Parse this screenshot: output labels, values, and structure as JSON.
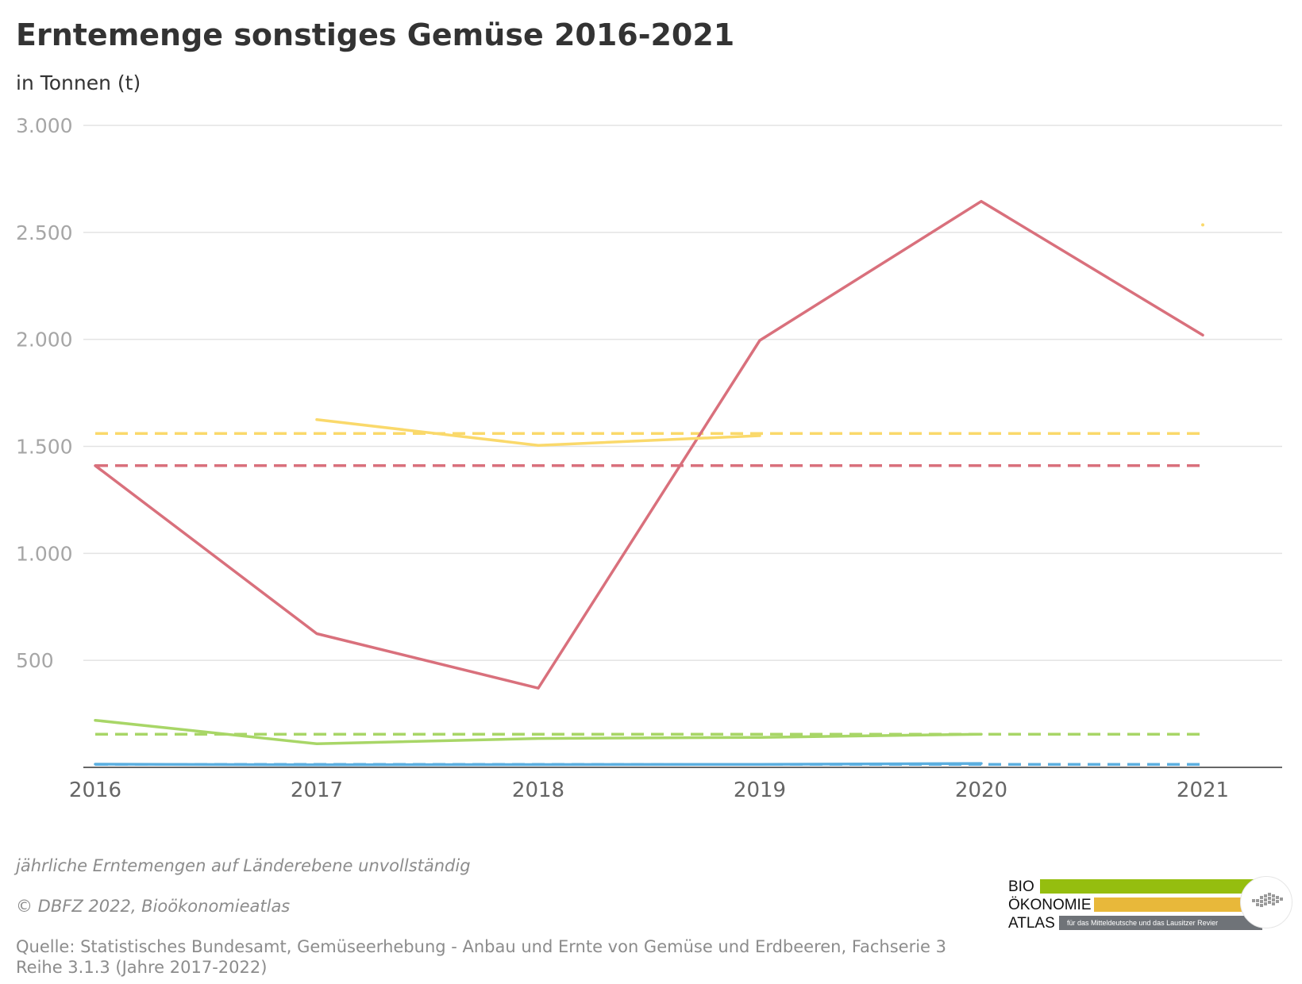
{
  "header": {
    "title": "Erntemenge sonstiges Gemüse 2016-2021",
    "subtitle": "in Tonnen (t)"
  },
  "chart_data": {
    "type": "line",
    "title": "Erntemenge sonstiges Gemüse 2016-2021",
    "subtitle": "in Tonnen (t)",
    "xlabel": "",
    "ylabel": "",
    "x": [
      "2016",
      "2017",
      "2018",
      "2019",
      "2020",
      "2021"
    ],
    "ylim": [
      0,
      3000
    ],
    "yticks": [
      500,
      1000,
      1500,
      2000,
      2500,
      3000
    ],
    "ytick_labels": [
      "500",
      "1.000",
      "1.500",
      "2.000",
      "2.500",
      "3.000"
    ],
    "grid": true,
    "legend": "none",
    "series": [
      {
        "color": "#d9707c",
        "style": "solid",
        "values": [
          1410,
          625,
          370,
          1995,
          2645,
          2020
        ]
      },
      {
        "color": "#d9707c",
        "style": "dashed",
        "values": [
          1410,
          1410,
          1410,
          1410,
          1410,
          1410
        ]
      },
      {
        "color": "#fad96b",
        "style": "solid",
        "values": [
          null,
          1625,
          1505,
          1550,
          null,
          2535
        ]
      },
      {
        "color": "#fad96b",
        "style": "dashed",
        "values": [
          1560,
          1560,
          1560,
          1560,
          1560,
          1560
        ]
      },
      {
        "color": "#a8d667",
        "style": "solid",
        "values": [
          220,
          110,
          135,
          140,
          155,
          null
        ]
      },
      {
        "color": "#a8d667",
        "style": "dashed",
        "values": [
          155,
          155,
          155,
          155,
          155,
          155
        ]
      },
      {
        "color": "#5cafe0",
        "style": "solid",
        "values": [
          15,
          12,
          13,
          14,
          18,
          null
        ]
      },
      {
        "color": "#5cafe0",
        "style": "dashed",
        "values": [
          14,
          14,
          14,
          14,
          14,
          14
        ]
      }
    ]
  },
  "footer": {
    "note": "jährliche Erntemengen auf Länderebene unvollständig",
    "copyright": "© DBFZ 2022, Bioökonomieatlas",
    "source": "Quelle: Statistisches Bundesamt, Gemüseerhebung - Anbau und Ernte von Gemüse und Erdbeeren, Fachserie 3 Reihe 3.1.3 (Jahre 2017-2022)"
  },
  "logo": {
    "word1": "BIO",
    "word2": "ÖKONOMIE",
    "word3": "ATLAS",
    "tagline": "für das Mitteldeutsche und das Lausitzer Revier",
    "colors": {
      "green": "#95be0f",
      "yellow": "#e8b83a",
      "gray": "#6f7378"
    }
  }
}
